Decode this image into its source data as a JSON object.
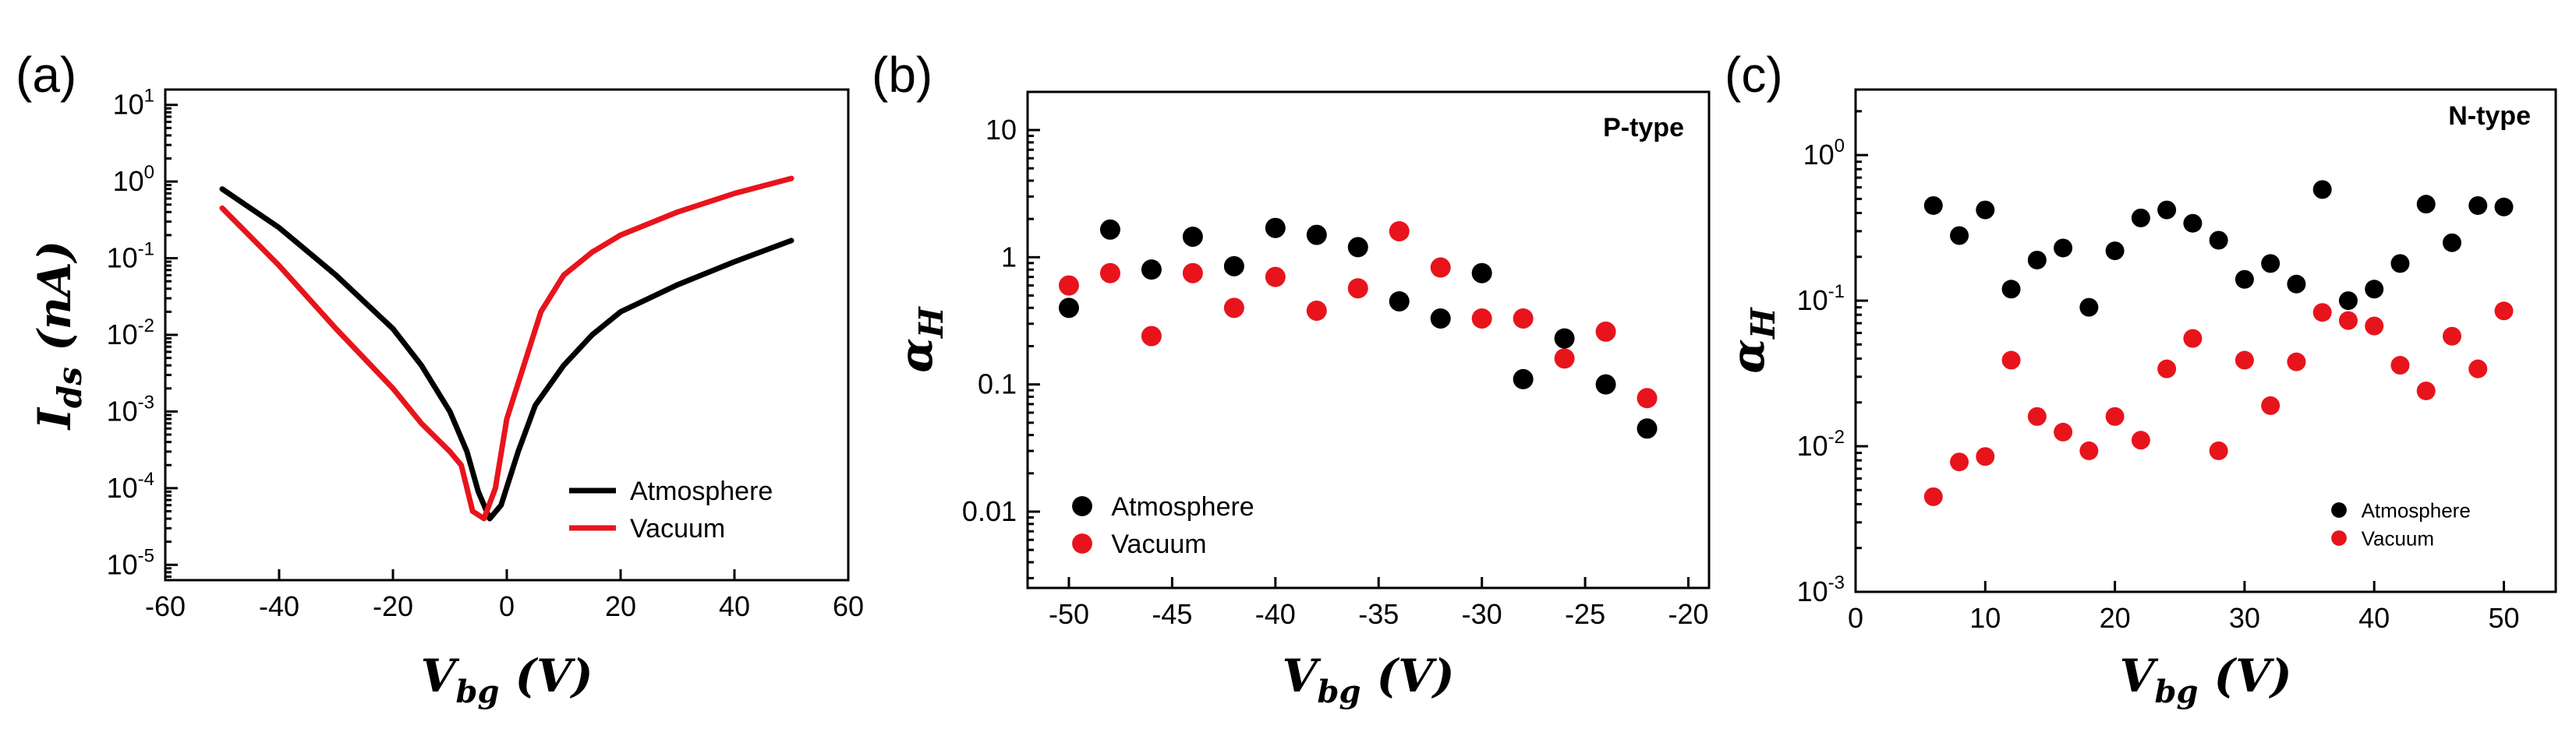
{
  "panels": {
    "a": {
      "label": "(a)"
    },
    "b": {
      "label": "(b)"
    },
    "c": {
      "label": "(c)"
    }
  },
  "colors": {
    "atmosphere": "#000000",
    "vacuum": "#e8141c",
    "axis": "#000000"
  },
  "chart_data": [
    {
      "id": "a",
      "type": "line",
      "title": "",
      "xlabel_main": "V",
      "xlabel_sub": "bg",
      "xlabel_unit": "(V)",
      "ylabel_main": "I",
      "ylabel_sub": "ds",
      "ylabel_unit": "(nA)",
      "xlim": [
        -60,
        60
      ],
      "ylim_log10": [
        -5.2,
        1.2
      ],
      "yscale": "log",
      "xticks": [
        "-60",
        "-40",
        "-20",
        "0",
        "20",
        "40",
        "60"
      ],
      "yticks": [
        {
          "exp": -5,
          "base": "10",
          "sup": "-5"
        },
        {
          "exp": -4,
          "base": "10",
          "sup": "-4"
        },
        {
          "exp": -3,
          "base": "10",
          "sup": "-3"
        },
        {
          "exp": -2,
          "base": "10",
          "sup": "-2"
        },
        {
          "exp": -1,
          "base": "10",
          "sup": "-1"
        },
        {
          "exp": 0,
          "base": "10",
          "sup": "0"
        },
        {
          "exp": 1,
          "base": "10",
          "sup": "1"
        }
      ],
      "legend": [
        "Atmosphere",
        "Vacuum"
      ],
      "series": [
        {
          "name": "Atmosphere",
          "x": [
            -50,
            -40,
            -30,
            -20,
            -15,
            -10,
            -7,
            -5,
            -3,
            -1,
            2,
            5,
            10,
            15,
            20,
            30,
            40,
            50
          ],
          "y": [
            0.8,
            0.25,
            0.06,
            0.012,
            0.004,
            0.001,
            0.0003,
            9e-05,
            4e-05,
            6e-05,
            0.0003,
            0.0012,
            0.004,
            0.01,
            0.02,
            0.045,
            0.09,
            0.17
          ]
        },
        {
          "name": "Vacuum",
          "x": [
            -50,
            -40,
            -30,
            -20,
            -15,
            -10,
            -8,
            -6,
            -4,
            -2,
            0,
            3,
            6,
            10,
            15,
            20,
            30,
            40,
            50
          ],
          "y": [
            0.45,
            0.08,
            0.012,
            0.002,
            0.0007,
            0.0003,
            0.0002,
            5e-05,
            4e-05,
            0.0001,
            0.0008,
            0.004,
            0.02,
            0.06,
            0.12,
            0.2,
            0.4,
            0.7,
            1.1
          ]
        }
      ]
    },
    {
      "id": "b",
      "type": "scatter",
      "annotation": "P-type",
      "xlabel_main": "V",
      "xlabel_sub": "bg",
      "xlabel_unit": "(V)",
      "ylabel_main": "α",
      "ylabel_sub": "H",
      "xlim": [
        -52,
        -19
      ],
      "ylim_log10": [
        -2.6,
        1.3
      ],
      "yscale": "log",
      "xticks": [
        "-50",
        "-45",
        "-40",
        "-35",
        "-30",
        "-25",
        "-20"
      ],
      "yticks": [
        {
          "exp": -2,
          "text": "0.01"
        },
        {
          "exp": -1,
          "text": "0.1"
        },
        {
          "exp": 0,
          "text": "1"
        },
        {
          "exp": 1,
          "text": "10"
        }
      ],
      "legend": [
        "Atmosphere",
        "Vacuum"
      ],
      "series": [
        {
          "name": "Atmosphere",
          "x": [
            -50,
            -48,
            -46,
            -44,
            -42,
            -40,
            -38,
            -36,
            -34,
            -32,
            -30,
            -28,
            -26,
            -24,
            -22
          ],
          "y": [
            0.4,
            1.65,
            0.8,
            1.45,
            0.85,
            1.7,
            1.5,
            1.2,
            0.45,
            0.33,
            0.75,
            0.11,
            0.23,
            0.1,
            0.045
          ]
        },
        {
          "name": "Vacuum",
          "x": [
            -50,
            -48,
            -46,
            -44,
            -42,
            -40,
            -38,
            -36,
            -34,
            -32,
            -30,
            -28,
            -26,
            -24,
            -22
          ],
          "y": [
            0.6,
            0.75,
            0.24,
            0.75,
            0.4,
            0.7,
            0.38,
            0.57,
            1.6,
            0.83,
            0.33,
            0.33,
            0.16,
            0.26,
            0.078
          ]
        }
      ]
    },
    {
      "id": "c",
      "type": "scatter",
      "annotation": "N-type",
      "xlabel_main": "V",
      "xlabel_sub": "bg",
      "xlabel_unit": "(V)",
      "ylabel_main": "α",
      "ylabel_sub": "H",
      "xlim": [
        0,
        54
      ],
      "ylim_log10": [
        -3,
        0.45
      ],
      "yscale": "log",
      "xticks": [
        "0",
        "10",
        "20",
        "30",
        "40",
        "50"
      ],
      "yticks": [
        {
          "exp": -3,
          "base": "10",
          "sup": "-3"
        },
        {
          "exp": -2,
          "base": "10",
          "sup": "-2"
        },
        {
          "exp": -1,
          "base": "10",
          "sup": "-1"
        },
        {
          "exp": 0,
          "base": "10",
          "sup": "0"
        }
      ],
      "legend": [
        "Atmosphere",
        "Vacuum"
      ],
      "series": [
        {
          "name": "Atmosphere",
          "x": [
            6,
            8,
            10,
            12,
            14,
            16,
            18,
            20,
            22,
            24,
            26,
            28,
            30,
            32,
            34,
            36,
            38,
            40,
            42,
            44,
            46,
            48,
            50
          ],
          "y": [
            0.45,
            0.28,
            0.42,
            0.12,
            0.19,
            0.23,
            0.09,
            0.22,
            0.37,
            0.42,
            0.34,
            0.26,
            0.14,
            0.18,
            0.13,
            0.58,
            0.1,
            0.12,
            0.18,
            0.46,
            0.25,
            0.45,
            0.44
          ]
        },
        {
          "name": "Vacuum",
          "x": [
            6,
            8,
            10,
            12,
            14,
            16,
            18,
            20,
            22,
            24,
            26,
            28,
            30,
            32,
            34,
            36,
            38,
            40,
            42,
            44,
            46,
            48,
            50
          ],
          "y": [
            0.0045,
            0.0078,
            0.0085,
            0.039,
            0.016,
            0.0125,
            0.0093,
            0.016,
            0.011,
            0.034,
            0.055,
            0.0093,
            0.039,
            0.019,
            0.038,
            0.083,
            0.073,
            0.067,
            0.036,
            0.024,
            0.057,
            0.034,
            0.085
          ]
        }
      ]
    }
  ]
}
